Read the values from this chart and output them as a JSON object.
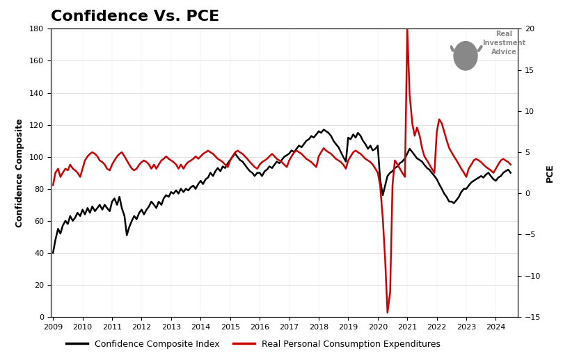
{
  "title": "Confidence Vs. PCE",
  "title_fontsize": 16,
  "title_fontweight": "bold",
  "ylabel_left": "Confidence Composite",
  "ylabel_right": "PCE",
  "ylim_left": [
    0,
    180
  ],
  "ylim_right": [
    -15,
    20
  ],
  "yticks_left": [
    0,
    20,
    40,
    60,
    80,
    100,
    120,
    140,
    160,
    180
  ],
  "yticks_right": [
    -15,
    -10,
    -5,
    0,
    5,
    10,
    15,
    20
  ],
  "xtick_years": [
    2009,
    2010,
    2011,
    2012,
    2013,
    2014,
    2015,
    2016,
    2017,
    2018,
    2019,
    2020,
    2021,
    2022,
    2023,
    2024
  ],
  "bg_color": "#ffffff",
  "line1_color": "#000000",
  "line2_color": "#cc0000",
  "line1_label": "Confidence Composite Index",
  "line2_label": "Real Personal Consumption Expenditures",
  "line_width": 1.8,
  "confidence_x": [
    2009.0,
    2009.08,
    2009.17,
    2009.25,
    2009.33,
    2009.42,
    2009.5,
    2009.58,
    2009.67,
    2009.75,
    2009.83,
    2009.92,
    2010.0,
    2010.08,
    2010.17,
    2010.25,
    2010.33,
    2010.42,
    2010.5,
    2010.58,
    2010.67,
    2010.75,
    2010.83,
    2010.92,
    2011.0,
    2011.08,
    2011.17,
    2011.25,
    2011.33,
    2011.42,
    2011.5,
    2011.58,
    2011.67,
    2011.75,
    2011.83,
    2011.92,
    2012.0,
    2012.08,
    2012.17,
    2012.25,
    2012.33,
    2012.42,
    2012.5,
    2012.58,
    2012.67,
    2012.75,
    2012.83,
    2012.92,
    2013.0,
    2013.08,
    2013.17,
    2013.25,
    2013.33,
    2013.42,
    2013.5,
    2013.58,
    2013.67,
    2013.75,
    2013.83,
    2013.92,
    2014.0,
    2014.08,
    2014.17,
    2014.25,
    2014.33,
    2014.42,
    2014.5,
    2014.58,
    2014.67,
    2014.75,
    2014.83,
    2014.92,
    2015.0,
    2015.08,
    2015.17,
    2015.25,
    2015.33,
    2015.42,
    2015.5,
    2015.58,
    2015.67,
    2015.75,
    2015.83,
    2015.92,
    2016.0,
    2016.08,
    2016.17,
    2016.25,
    2016.33,
    2016.42,
    2016.5,
    2016.58,
    2016.67,
    2016.75,
    2016.83,
    2016.92,
    2017.0,
    2017.08,
    2017.17,
    2017.25,
    2017.33,
    2017.42,
    2017.5,
    2017.58,
    2017.67,
    2017.75,
    2017.83,
    2017.92,
    2018.0,
    2018.08,
    2018.17,
    2018.25,
    2018.33,
    2018.42,
    2018.5,
    2018.58,
    2018.67,
    2018.75,
    2018.83,
    2018.92,
    2019.0,
    2019.08,
    2019.17,
    2019.25,
    2019.33,
    2019.42,
    2019.5,
    2019.58,
    2019.67,
    2019.75,
    2019.83,
    2019.92,
    2020.0,
    2020.08,
    2020.17,
    2020.25,
    2020.33,
    2020.42,
    2020.5,
    2020.58,
    2020.67,
    2020.75,
    2020.83,
    2020.92,
    2021.0,
    2021.08,
    2021.17,
    2021.25,
    2021.33,
    2021.42,
    2021.5,
    2021.58,
    2021.67,
    2021.75,
    2021.83,
    2021.92,
    2022.0,
    2022.08,
    2022.17,
    2022.25,
    2022.33,
    2022.42,
    2022.5,
    2022.58,
    2022.67,
    2022.75,
    2022.83,
    2022.92,
    2023.0,
    2023.08,
    2023.17,
    2023.25,
    2023.33,
    2023.42,
    2023.5,
    2023.58,
    2023.67,
    2023.75,
    2023.83,
    2023.92,
    2024.0,
    2024.08,
    2024.17,
    2024.25,
    2024.33,
    2024.42,
    2024.5
  ],
  "confidence_y": [
    40,
    48,
    55,
    52,
    57,
    60,
    58,
    63,
    60,
    62,
    65,
    63,
    67,
    64,
    68,
    65,
    69,
    66,
    68,
    70,
    67,
    70,
    68,
    66,
    72,
    74,
    70,
    75,
    68,
    63,
    51,
    56,
    60,
    63,
    61,
    65,
    67,
    64,
    67,
    69,
    72,
    70,
    68,
    72,
    70,
    74,
    76,
    75,
    78,
    77,
    79,
    77,
    80,
    78,
    80,
    79,
    81,
    82,
    80,
    83,
    85,
    83,
    86,
    87,
    90,
    88,
    91,
    93,
    91,
    94,
    93,
    96,
    98,
    100,
    102,
    100,
    98,
    97,
    95,
    93,
    91,
    90,
    88,
    90,
    90,
    88,
    91,
    92,
    94,
    93,
    95,
    97,
    96,
    98,
    100,
    101,
    102,
    104,
    103,
    105,
    107,
    106,
    108,
    110,
    111,
    113,
    112,
    114,
    116,
    115,
    117,
    116,
    115,
    113,
    110,
    108,
    106,
    103,
    100,
    97,
    112,
    111,
    114,
    112,
    115,
    113,
    110,
    108,
    105,
    107,
    104,
    105,
    107,
    86,
    76,
    82,
    88,
    90,
    91,
    93,
    94,
    96,
    97,
    99,
    102,
    105,
    103,
    101,
    99,
    98,
    97,
    95,
    93,
    92,
    90,
    88,
    86,
    83,
    80,
    77,
    75,
    72,
    72,
    71,
    73,
    75,
    78,
    80,
    80,
    82,
    84,
    85,
    86,
    87,
    88,
    87,
    89,
    90,
    88,
    86,
    85,
    87,
    88,
    90,
    91,
    92,
    90
  ],
  "pce_x": [
    2009.0,
    2009.08,
    2009.17,
    2009.25,
    2009.33,
    2009.42,
    2009.5,
    2009.58,
    2009.67,
    2009.75,
    2009.83,
    2009.92,
    2010.0,
    2010.08,
    2010.17,
    2010.25,
    2010.33,
    2010.42,
    2010.5,
    2010.58,
    2010.67,
    2010.75,
    2010.83,
    2010.92,
    2011.0,
    2011.08,
    2011.17,
    2011.25,
    2011.33,
    2011.42,
    2011.5,
    2011.58,
    2011.67,
    2011.75,
    2011.83,
    2011.92,
    2012.0,
    2012.08,
    2012.17,
    2012.25,
    2012.33,
    2012.42,
    2012.5,
    2012.58,
    2012.67,
    2012.75,
    2012.83,
    2012.92,
    2013.0,
    2013.08,
    2013.17,
    2013.25,
    2013.33,
    2013.42,
    2013.5,
    2013.58,
    2013.67,
    2013.75,
    2013.83,
    2013.92,
    2014.0,
    2014.08,
    2014.17,
    2014.25,
    2014.33,
    2014.42,
    2014.5,
    2014.58,
    2014.67,
    2014.75,
    2014.83,
    2014.92,
    2015.0,
    2015.08,
    2015.17,
    2015.25,
    2015.33,
    2015.42,
    2015.5,
    2015.58,
    2015.67,
    2015.75,
    2015.83,
    2015.92,
    2016.0,
    2016.08,
    2016.17,
    2016.25,
    2016.33,
    2016.42,
    2016.5,
    2016.58,
    2016.67,
    2016.75,
    2016.83,
    2016.92,
    2017.0,
    2017.08,
    2017.17,
    2017.25,
    2017.33,
    2017.42,
    2017.5,
    2017.58,
    2017.67,
    2017.75,
    2017.83,
    2017.92,
    2018.0,
    2018.08,
    2018.17,
    2018.25,
    2018.33,
    2018.42,
    2018.5,
    2018.58,
    2018.67,
    2018.75,
    2018.83,
    2018.92,
    2019.0,
    2019.08,
    2019.17,
    2019.25,
    2019.33,
    2019.42,
    2019.5,
    2019.58,
    2019.67,
    2019.75,
    2019.83,
    2019.92,
    2020.0,
    2020.08,
    2020.17,
    2020.25,
    2020.33,
    2020.42,
    2020.5,
    2020.58,
    2020.67,
    2020.75,
    2020.83,
    2020.92,
    2021.0,
    2021.08,
    2021.17,
    2021.25,
    2021.33,
    2021.42,
    2021.5,
    2021.58,
    2021.67,
    2021.75,
    2021.83,
    2021.92,
    2022.0,
    2022.08,
    2022.17,
    2022.25,
    2022.33,
    2022.42,
    2022.5,
    2022.58,
    2022.67,
    2022.75,
    2022.83,
    2022.92,
    2023.0,
    2023.08,
    2023.17,
    2023.25,
    2023.33,
    2023.42,
    2023.5,
    2023.58,
    2023.67,
    2023.75,
    2023.83,
    2023.92,
    2024.0,
    2024.08,
    2024.17,
    2024.25,
    2024.33,
    2024.42,
    2024.5
  ],
  "pce_y": [
    1.0,
    2.5,
    3.0,
    2.0,
    2.5,
    3.0,
    2.8,
    3.5,
    3.0,
    2.8,
    2.5,
    2.0,
    3.0,
    4.0,
    4.5,
    4.8,
    5.0,
    4.8,
    4.5,
    4.0,
    3.8,
    3.5,
    3.0,
    2.8,
    3.5,
    4.0,
    4.5,
    4.8,
    5.0,
    4.5,
    4.0,
    3.5,
    3.0,
    2.8,
    3.0,
    3.5,
    3.8,
    4.0,
    3.8,
    3.5,
    3.0,
    3.5,
    3.0,
    3.5,
    4.0,
    4.2,
    4.5,
    4.2,
    4.0,
    3.8,
    3.5,
    3.0,
    3.5,
    3.0,
    3.5,
    3.8,
    4.0,
    4.2,
    4.5,
    4.2,
    4.5,
    4.8,
    5.0,
    5.2,
    5.0,
    4.8,
    4.5,
    4.2,
    4.0,
    3.8,
    3.5,
    3.2,
    4.0,
    4.5,
    5.0,
    5.2,
    5.0,
    4.8,
    4.5,
    4.2,
    3.8,
    3.5,
    3.2,
    3.0,
    3.5,
    3.8,
    4.0,
    4.2,
    4.5,
    4.8,
    4.5,
    4.2,
    4.0,
    3.8,
    3.5,
    3.2,
    4.0,
    4.5,
    5.0,
    5.2,
    5.0,
    4.8,
    4.5,
    4.2,
    4.0,
    3.8,
    3.5,
    3.2,
    4.5,
    5.0,
    5.5,
    5.2,
    5.0,
    4.8,
    4.5,
    4.2,
    4.0,
    3.8,
    3.5,
    3.0,
    4.0,
    4.5,
    5.0,
    5.2,
    5.0,
    4.8,
    4.5,
    4.2,
    4.0,
    3.8,
    3.5,
    3.0,
    2.5,
    1.0,
    -3.0,
    -8.0,
    -14.5,
    -12.0,
    1.0,
    4.0,
    3.5,
    3.0,
    2.5,
    2.0,
    20.0,
    12.0,
    8.5,
    7.0,
    8.0,
    7.0,
    5.5,
    4.5,
    4.0,
    3.5,
    3.0,
    2.5,
    7.5,
    9.0,
    8.5,
    7.5,
    6.5,
    5.5,
    5.0,
    4.5,
    4.0,
    3.5,
    3.0,
    2.5,
    2.0,
    3.0,
    3.5,
    4.0,
    4.2,
    4.0,
    3.8,
    3.5,
    3.2,
    3.0,
    2.8,
    2.5,
    3.0,
    3.5,
    4.0,
    4.2,
    4.0,
    3.8,
    3.5
  ]
}
